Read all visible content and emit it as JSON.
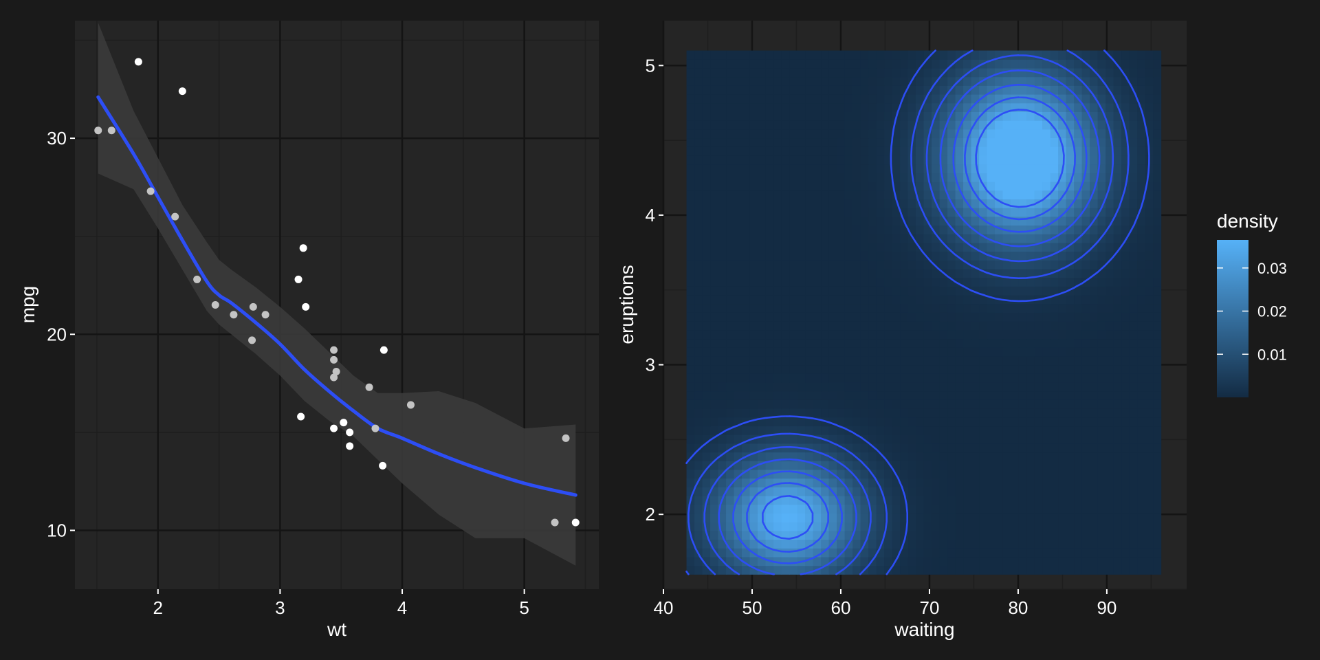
{
  "chart_data": [
    {
      "type": "scatter",
      "title": "",
      "xlabel": "wt",
      "ylabel": "mpg",
      "xlim": [
        1.32,
        5.61
      ],
      "ylim": [
        7.0,
        36.0
      ],
      "x_ticks": [
        2,
        3,
        4,
        5
      ],
      "y_ticks": [
        10,
        20,
        30
      ],
      "grid": true,
      "colors": {
        "panel": "#252525",
        "grid_major": "#141414",
        "grid_minor": "#1e1e1e",
        "point_dark": "#ffffff",
        "point_light": "#c4c4c4",
        "smooth_line": "#2d4ef5",
        "ribbon": "#3c3c3c"
      },
      "points": [
        {
          "x": 1.51,
          "y": 30.4,
          "shade": "light"
        },
        {
          "x": 1.62,
          "y": 30.4,
          "shade": "light"
        },
        {
          "x": 1.84,
          "y": 33.9,
          "shade": "dark"
        },
        {
          "x": 1.94,
          "y": 27.3,
          "shade": "light"
        },
        {
          "x": 2.14,
          "y": 26.0,
          "shade": "light"
        },
        {
          "x": 2.2,
          "y": 32.4,
          "shade": "dark"
        },
        {
          "x": 2.32,
          "y": 22.8,
          "shade": "light"
        },
        {
          "x": 2.47,
          "y": 21.5,
          "shade": "light"
        },
        {
          "x": 2.62,
          "y": 21.0,
          "shade": "light"
        },
        {
          "x": 2.77,
          "y": 19.7,
          "shade": "light"
        },
        {
          "x": 2.78,
          "y": 21.4,
          "shade": "light"
        },
        {
          "x": 2.88,
          "y": 21.0,
          "shade": "light"
        },
        {
          "x": 3.15,
          "y": 22.8,
          "shade": "dark"
        },
        {
          "x": 3.17,
          "y": 15.8,
          "shade": "dark"
        },
        {
          "x": 3.19,
          "y": 24.4,
          "shade": "dark"
        },
        {
          "x": 3.21,
          "y": 21.4,
          "shade": "dark"
        },
        {
          "x": 3.44,
          "y": 18.7,
          "shade": "light"
        },
        {
          "x": 3.44,
          "y": 19.2,
          "shade": "light"
        },
        {
          "x": 3.44,
          "y": 17.8,
          "shade": "light"
        },
        {
          "x": 3.44,
          "y": 15.2,
          "shade": "dark"
        },
        {
          "x": 3.46,
          "y": 18.1,
          "shade": "light"
        },
        {
          "x": 3.52,
          "y": 15.5,
          "shade": "dark"
        },
        {
          "x": 3.57,
          "y": 15.0,
          "shade": "dark"
        },
        {
          "x": 3.57,
          "y": 14.3,
          "shade": "dark"
        },
        {
          "x": 3.73,
          "y": 17.3,
          "shade": "light"
        },
        {
          "x": 3.78,
          "y": 15.2,
          "shade": "light"
        },
        {
          "x": 3.84,
          "y": 13.3,
          "shade": "dark"
        },
        {
          "x": 3.85,
          "y": 19.2,
          "shade": "dark"
        },
        {
          "x": 4.07,
          "y": 16.4,
          "shade": "light"
        },
        {
          "x": 5.25,
          "y": 10.4,
          "shade": "light"
        },
        {
          "x": 5.34,
          "y": 14.7,
          "shade": "light"
        },
        {
          "x": 5.42,
          "y": 10.4,
          "shade": "dark"
        }
      ],
      "smooth": {
        "x": [
          1.51,
          1.8,
          2.0,
          2.2,
          2.4,
          2.5,
          2.6,
          2.8,
          3.0,
          3.2,
          3.4,
          3.6,
          3.8,
          4.0,
          4.3,
          4.6,
          5.0,
          5.42
        ],
        "y": [
          32.1,
          29.2,
          27.0,
          24.8,
          22.7,
          22.0,
          21.6,
          20.6,
          19.5,
          18.2,
          17.1,
          16.1,
          15.2,
          14.7,
          13.9,
          13.2,
          12.4,
          11.8
        ],
        "lower": [
          28.2,
          27.4,
          25.4,
          23.3,
          21.2,
          20.5,
          20.0,
          19.0,
          17.9,
          16.6,
          15.6,
          14.8,
          13.6,
          12.4,
          10.8,
          9.6,
          9.6,
          8.2
        ],
        "upper": [
          35.9,
          31.4,
          29.0,
          26.6,
          24.7,
          23.8,
          23.3,
          22.4,
          21.4,
          20.3,
          19.1,
          17.9,
          17.0,
          17.0,
          17.1,
          16.5,
          15.2,
          15.4
        ]
      }
    },
    {
      "type": "heatmap",
      "title": "",
      "xlabel": "waiting",
      "ylabel": "eruptions",
      "xlim": [
        40,
        99
      ],
      "ylim": [
        1.5,
        5.3
      ],
      "raster_extent": {
        "x": [
          42.6,
          96.1
        ],
        "y": [
          1.6,
          5.1
        ]
      },
      "x_ticks": [
        40,
        50,
        60,
        70,
        80,
        90
      ],
      "y_ticks": [
        2,
        3,
        4,
        5
      ],
      "grid": true,
      "legend": {
        "title": "density",
        "position": "right",
        "ticks": [
          0.01,
          0.02,
          0.03
        ],
        "range": [
          0.0,
          0.0365
        ],
        "colors": [
          "#132b43",
          "#56b1f7"
        ]
      },
      "contour_color": "#2d4ef5",
      "colors": {
        "panel": "#252525",
        "grid_major": "#141414",
        "grid_minor": "#1e1e1e"
      },
      "density_components": [
        {
          "weight": 0.64,
          "mean_waiting": 80.2,
          "mean_eruptions": 4.38,
          "sd_waiting": 5.8,
          "sd_eruptions": 0.38
        },
        {
          "weight": 0.36,
          "mean_waiting": 54.0,
          "mean_eruptions": 1.98,
          "sd_waiting": 5.6,
          "sd_eruptions": 0.28
        }
      ],
      "contour_levels": [
        0.002,
        0.005,
        0.009,
        0.014,
        0.02,
        0.026,
        0.032
      ]
    }
  ]
}
